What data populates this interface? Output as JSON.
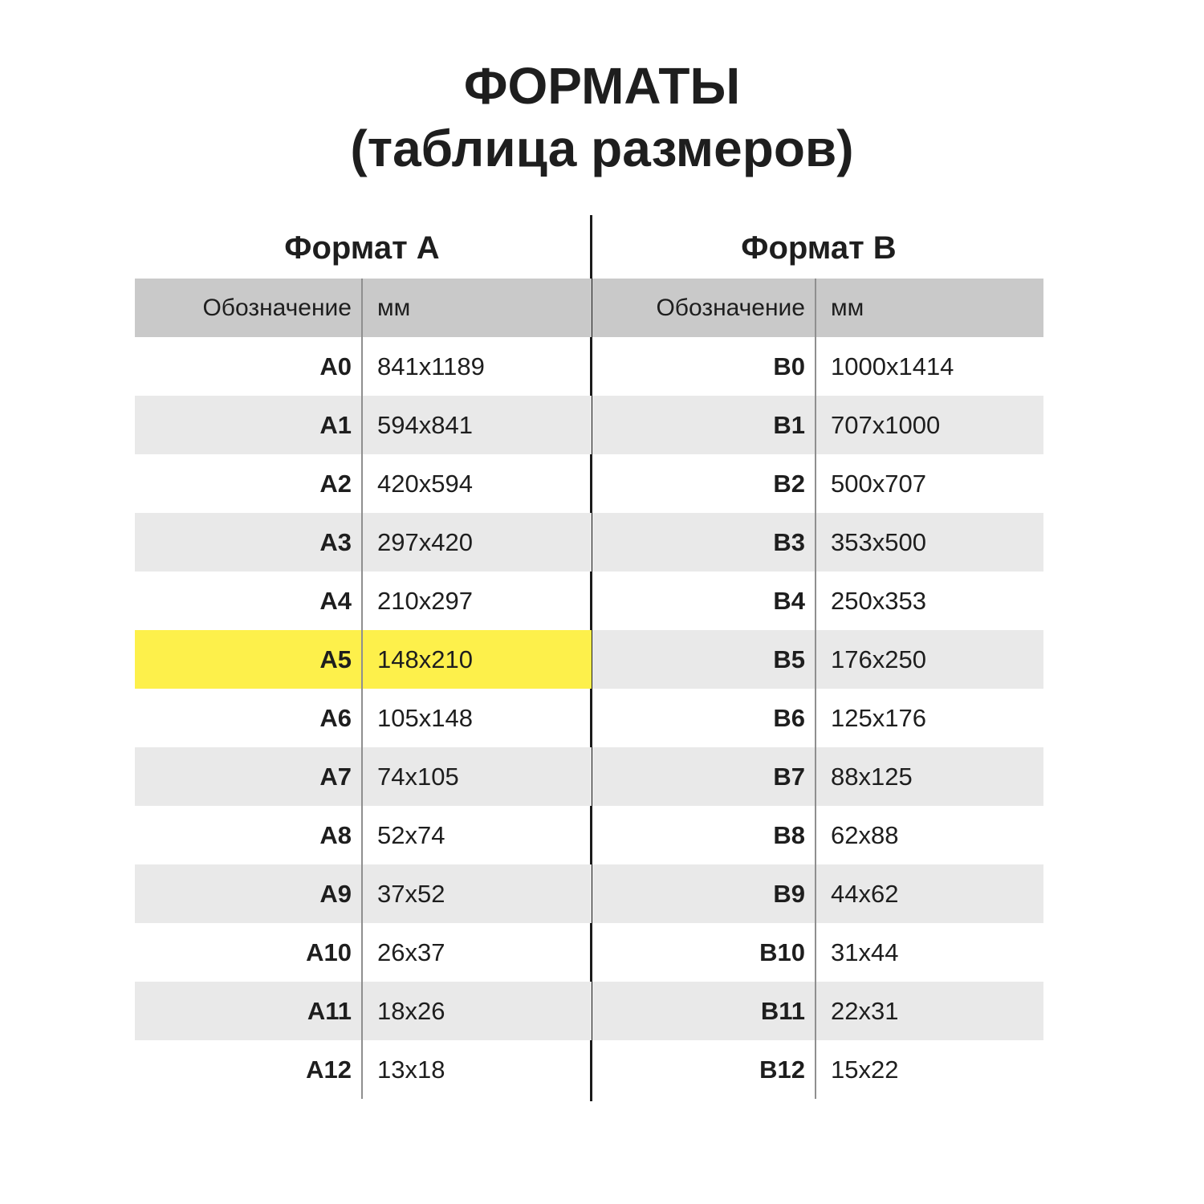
{
  "header": {
    "title_line1": "ФОРМАТЫ",
    "title_line2": "(таблица размеров)"
  },
  "columns": {
    "designation": "Обозначение",
    "mm": "мм"
  },
  "format_a": {
    "title": "Формат А",
    "rows": [
      {
        "designation": "A0",
        "mm": "841x1189"
      },
      {
        "designation": "A1",
        "mm": "594x841"
      },
      {
        "designation": "A2",
        "mm": "420x594"
      },
      {
        "designation": "A3",
        "mm": "297x420"
      },
      {
        "designation": "A4",
        "mm": "210x297"
      },
      {
        "designation": "A5",
        "mm": "148x210",
        "highlighted": true
      },
      {
        "designation": "A6",
        "mm": "105x148"
      },
      {
        "designation": "A7",
        "mm": "74x105"
      },
      {
        "designation": "A8",
        "mm": "52x74"
      },
      {
        "designation": "A9",
        "mm": "37x52"
      },
      {
        "designation": "A10",
        "mm": "26x37"
      },
      {
        "designation": "A11",
        "mm": "18x26"
      },
      {
        "designation": "A12",
        "mm": "13x18"
      }
    ]
  },
  "format_b": {
    "title": "Формат В",
    "rows": [
      {
        "designation": "B0",
        "mm": "1000x1414"
      },
      {
        "designation": "B1",
        "mm": "707x1000"
      },
      {
        "designation": "B2",
        "mm": "500x707"
      },
      {
        "designation": "B3",
        "mm": "353x500"
      },
      {
        "designation": "B4",
        "mm": "250x353"
      },
      {
        "designation": "B5",
        "mm": "176x250"
      },
      {
        "designation": "B6",
        "mm": "125x176"
      },
      {
        "designation": "B7",
        "mm": "88x125"
      },
      {
        "designation": "B8",
        "mm": "62x88"
      },
      {
        "designation": "B9",
        "mm": "44x62"
      },
      {
        "designation": "B10",
        "mm": "31x44"
      },
      {
        "designation": "B11",
        "mm": "22x31"
      },
      {
        "designation": "B12",
        "mm": "15x22"
      }
    ]
  },
  "colors": {
    "header_bg": "#c9c9c9",
    "row_alt_bg": "#e9e9e9",
    "highlight_bg": "#fdf04b",
    "divider": "#1b1b1b",
    "column_rule": "#8f8f8f",
    "text": "#1e1e1e"
  }
}
